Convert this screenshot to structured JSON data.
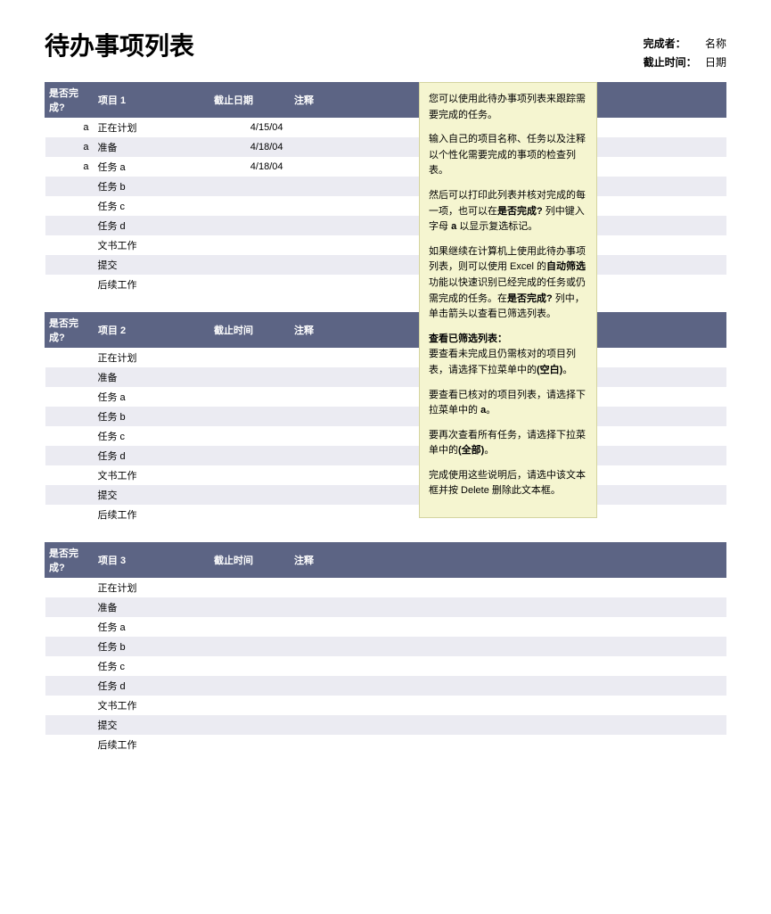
{
  "title": "待办事项列表",
  "meta": {
    "owner_label": "完成者：",
    "owner_value": "名称",
    "deadline_label": "截止时间：",
    "deadline_value": "日期"
  },
  "columns": {
    "done": "是否完成?",
    "due_date": "截止日期",
    "due_time": "截止时间",
    "notes": "注释"
  },
  "tables": [
    {
      "project_label": "项目 1",
      "due_header": "截止日期",
      "rows": [
        {
          "done": "a",
          "name": "正在计划",
          "due": "4/15/04",
          "notes": ""
        },
        {
          "done": "a",
          "name": "准备",
          "due": "4/18/04",
          "notes": ""
        },
        {
          "done": "a",
          "name": "任务 a",
          "due": "4/18/04",
          "notes": ""
        },
        {
          "done": "",
          "name": "任务 b",
          "due": "",
          "notes": ""
        },
        {
          "done": "",
          "name": "任务 c",
          "due": "",
          "notes": ""
        },
        {
          "done": "",
          "name": "任务 d",
          "due": "",
          "notes": ""
        },
        {
          "done": "",
          "name": "文书工作",
          "due": "",
          "notes": ""
        },
        {
          "done": "",
          "name": "提交",
          "due": "",
          "notes": ""
        },
        {
          "done": "",
          "name": "后续工作",
          "due": "",
          "notes": ""
        }
      ]
    },
    {
      "project_label": "项目 2",
      "due_header": "截止时间",
      "rows": [
        {
          "done": "",
          "name": "正在计划",
          "due": "",
          "notes": ""
        },
        {
          "done": "",
          "name": "准备",
          "due": "",
          "notes": ""
        },
        {
          "done": "",
          "name": "任务 a",
          "due": "",
          "notes": ""
        },
        {
          "done": "",
          "name": "任务 b",
          "due": "",
          "notes": ""
        },
        {
          "done": "",
          "name": "任务 c",
          "due": "",
          "notes": ""
        },
        {
          "done": "",
          "name": "任务 d",
          "due": "",
          "notes": ""
        },
        {
          "done": "",
          "name": "文书工作",
          "due": "",
          "notes": ""
        },
        {
          "done": "",
          "name": "提交",
          "due": "",
          "notes": ""
        },
        {
          "done": "",
          "name": "后续工作",
          "due": "",
          "notes": ""
        }
      ]
    },
    {
      "project_label": "项目 3",
      "due_header": "截止时间",
      "rows": [
        {
          "done": "",
          "name": "正在计划",
          "due": "",
          "notes": ""
        },
        {
          "done": "",
          "name": "准备",
          "due": "",
          "notes": ""
        },
        {
          "done": "",
          "name": "任务 a",
          "due": "",
          "notes": ""
        },
        {
          "done": "",
          "name": "任务 b",
          "due": "",
          "notes": ""
        },
        {
          "done": "",
          "name": "任务 c",
          "due": "",
          "notes": ""
        },
        {
          "done": "",
          "name": "任务 d",
          "due": "",
          "notes": ""
        },
        {
          "done": "",
          "name": "文书工作",
          "due": "",
          "notes": ""
        },
        {
          "done": "",
          "name": "提交",
          "due": "",
          "notes": ""
        },
        {
          "done": "",
          "name": "后续工作",
          "due": "",
          "notes": ""
        }
      ]
    }
  ],
  "instructions": {
    "p1": "您可以使用此待办事项列表来跟踪需要完成的任务。",
    "p2": "输入自己的项目名称、任务以及注释以个性化需要完成的事项的检查列表。",
    "p3a": "然后可以打印此列表并核对完成的每一项，也可以在",
    "p3b": "是否完成?",
    "p3c": " 列中键入字母 ",
    "p3d": "a",
    "p3e": " 以显示复选标记。",
    "p4a": "如果继续在计算机上使用此待办事项列表，则可以使用 Excel 的",
    "p4b": "自动筛选",
    "p4c": "功能以快速识别已经完成的任务或仍需完成的任务。在",
    "p4d": "是否完成?",
    "p4e": " 列中，单击箭头以查看已筛选列表。",
    "p5a": "查看已筛选列表：",
    "p5b": "要查看未完成且仍需核对的项目列表，请选择下拉菜单中的",
    "p5c": "(空白)",
    "p5d": "。",
    "p6a": "要查看已核对的项目列表，请选择下拉菜单中的 ",
    "p6b": "a",
    "p6c": "。",
    "p7a": "要再次查看所有任务，请选择下拉菜单中的",
    "p7b": "(全部)",
    "p7c": "。",
    "p8": "完成使用这些说明后，请选中该文本框并按 Delete 删除此文本框。"
  },
  "style": {
    "header_bg": "#5c6484",
    "header_fg": "#ffffff",
    "row_alt_bg": "#ebebf2",
    "instructions_bg": "#f5f5d0"
  }
}
